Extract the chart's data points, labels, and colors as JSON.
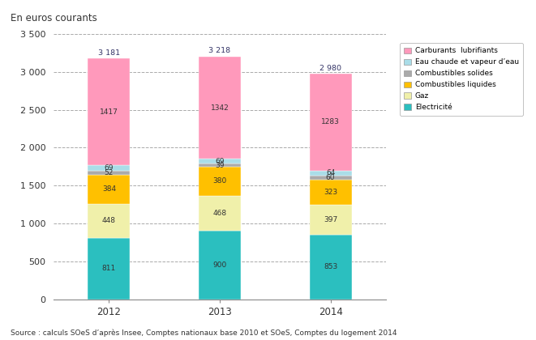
{
  "years": [
    "2012",
    "2013",
    "2014"
  ],
  "series": {
    "Electricité": [
      811,
      900,
      853
    ],
    "Gaz": [
      448,
      468,
      397
    ],
    "Combustibles liquides": [
      384,
      380,
      323
    ],
    "Combustibles solides": [
      52,
      39,
      60
    ],
    "Eau chaude et vapeur d’eau": [
      69,
      69,
      64
    ],
    "Carburants  lubrifiants": [
      1417,
      1342,
      1283
    ]
  },
  "totals": [
    3181,
    3218,
    2980
  ],
  "colors": {
    "Electricité": "#2BBFBF",
    "Gaz": "#F0F0AA",
    "Combustibles liquides": "#FFC000",
    "Combustibles solides": "#AAAAAA",
    "Eau chaude et vapeur d’eau": "#AADDE8",
    "Carburants  lubrifiants": "#FF99BB"
  },
  "title": "En euros courants",
  "ylim": [
    0,
    3500
  ],
  "yticks": [
    0,
    500,
    1000,
    1500,
    2000,
    2500,
    3000,
    3500
  ],
  "ytick_labels": [
    "0",
    "500",
    "1 000",
    "1 500",
    "2 000",
    "2 500",
    "3 000",
    "3 500"
  ],
  "source": "Source : calculs SOeS d’après Insee, Comptes nationaux base 2010 et SOeS, Comptes du logement 2014",
  "bar_width": 0.38
}
